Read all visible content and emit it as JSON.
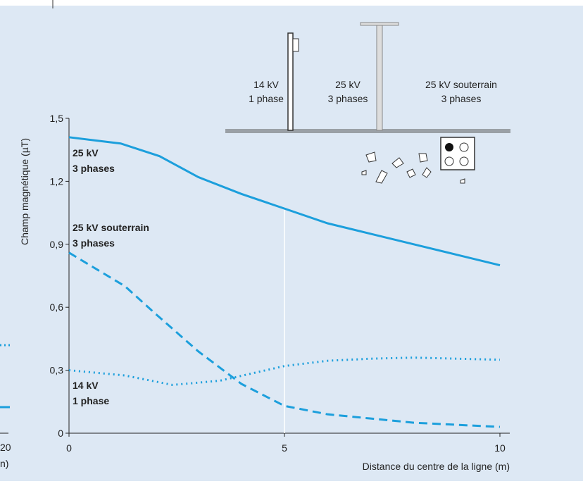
{
  "chart_data": {
    "type": "line",
    "y_label": "Champ magnétique (µT)",
    "x_label": "Distance du centre de la ligne (m)",
    "xlim": [
      0,
      10
    ],
    "xticks": [
      0,
      5,
      10
    ],
    "ylim": [
      0,
      1.5
    ],
    "yticks": [
      0,
      {
        "value": 0.3,
        "label": "0,3"
      },
      {
        "value": 0.6,
        "label": "0,6"
      },
      {
        "value": 0.9,
        "label": "0,9"
      },
      {
        "value": 1.2,
        "label": "1,2"
      },
      {
        "value": 1.5,
        "label": "1,5"
      }
    ],
    "series": [
      {
        "name": [
          "25 kV",
          "3 phases"
        ],
        "color": "#1c9fdc",
        "style": "solid",
        "x": [
          0,
          1.2,
          2.1,
          3,
          4,
          5,
          6,
          7,
          8,
          9,
          10
        ],
        "values": [
          1.41,
          1.38,
          1.32,
          1.22,
          1.14,
          1.07,
          1.0,
          0.95,
          0.9,
          0.85,
          0.8
        ]
      },
      {
        "name": [
          "25 kV souterrain",
          "3 phases"
        ],
        "color": "#1c9fdc",
        "style": "dashed",
        "x": [
          0,
          1.3,
          2,
          3,
          4,
          5,
          6,
          7,
          8,
          9,
          10
        ],
        "values": [
          0.86,
          0.7,
          0.57,
          0.39,
          0.235,
          0.13,
          0.09,
          0.07,
          0.05,
          0.04,
          0.03
        ]
      },
      {
        "name": [
          "14 kV",
          "1 phase"
        ],
        "color": "#1c9fdc",
        "style": "dotted",
        "x": [
          0,
          1.3,
          2.4,
          3.5,
          5,
          6,
          7,
          8,
          9,
          10
        ],
        "values": [
          0.3,
          0.275,
          0.23,
          0.25,
          0.32,
          0.345,
          0.355,
          0.36,
          0.355,
          0.35
        ]
      }
    ]
  },
  "illustration": {
    "labels": [
      [
        "14 kV",
        "1 phase"
      ],
      [
        "25 kV",
        "3 phases"
      ],
      [
        "25 kV souterrain",
        "3 phases"
      ]
    ]
  },
  "cropped_left": {
    "xtick": "20",
    "x_label_fragment": "n)"
  }
}
